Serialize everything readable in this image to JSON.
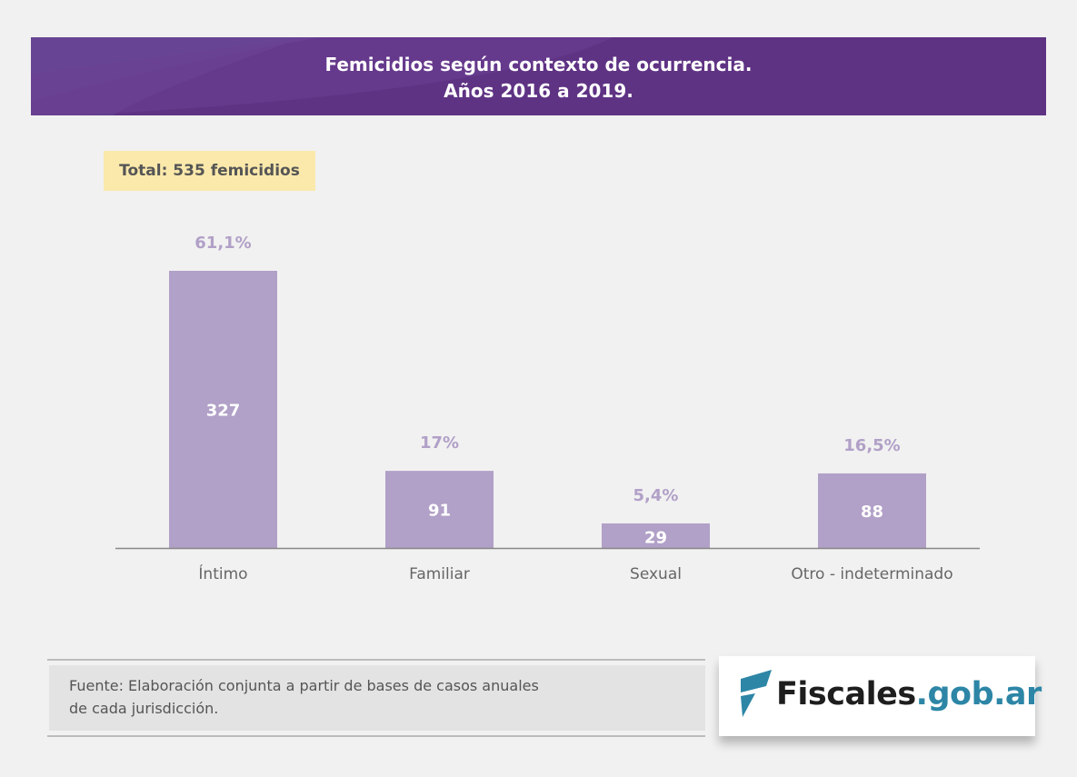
{
  "header": {
    "title_line1": "Femicidios según contexto de ocurrencia.",
    "title_line2": "Años 2016 a 2019."
  },
  "total_label": "Total: 535 femicidios",
  "chart_data": {
    "type": "bar",
    "categories": [
      "Íntimo",
      "Familiar",
      "Sexual",
      "Otro - indeterminado"
    ],
    "values": [
      327,
      91,
      29,
      88
    ],
    "percent_labels": [
      "61,1%",
      "17%",
      "5,4%",
      "16,5%"
    ],
    "ylim": [
      0,
      327
    ],
    "grid": false,
    "bar_color": "#b1a0c7",
    "percent_color": "#b1a0c7",
    "value_label_color": "#ffffff"
  },
  "source": {
    "line1": "Fuente: Elaboración conjunta a partir de bases de casos anuales",
    "line2": "de cada jurisdicción."
  },
  "logo": {
    "part1": "Fiscales",
    "part2": ".gob.ar",
    "icon": "fiscales-flag-icon"
  }
}
